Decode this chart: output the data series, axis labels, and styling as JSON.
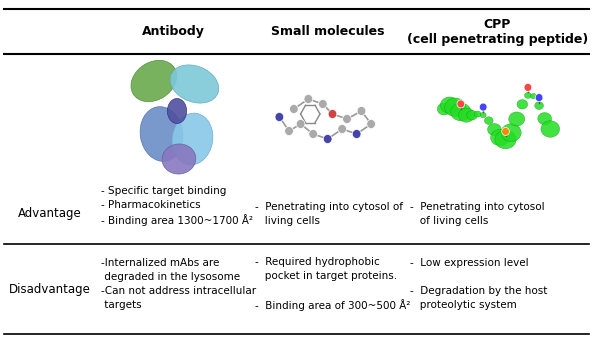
{
  "title_row": [
    "Antibody",
    "Small molecules",
    "CPP\n(cell penetrating peptide)"
  ],
  "row_labels": [
    "Advantage",
    "Disadvantage"
  ],
  "advantage_col1": "- Specific target binding\n- Pharmacokinetics\n- Binding area 1300~1700 Å²",
  "advantage_col2": "-  Penetrating into cytosol of\n   living cells",
  "advantage_col3": "-  Penetrating into cytosol\n   of living cells",
  "disadvantage_col1": "-Internalized mAbs are\n degraded in the lysosome\n-Can not address intracellular\n targets",
  "disadvantage_col2": "-  Required hydrophobic\n   pocket in target proteins.\n\n-  Binding area of 300~500 Å²",
  "disadvantage_col3": "-  Low expression level\n\n-  Degradation by the host\n   proteolytic system",
  "bg_color": "#ffffff",
  "text_color": "#000000",
  "header_fontsize": 9,
  "body_fontsize": 7.5,
  "label_fontsize": 8.5
}
